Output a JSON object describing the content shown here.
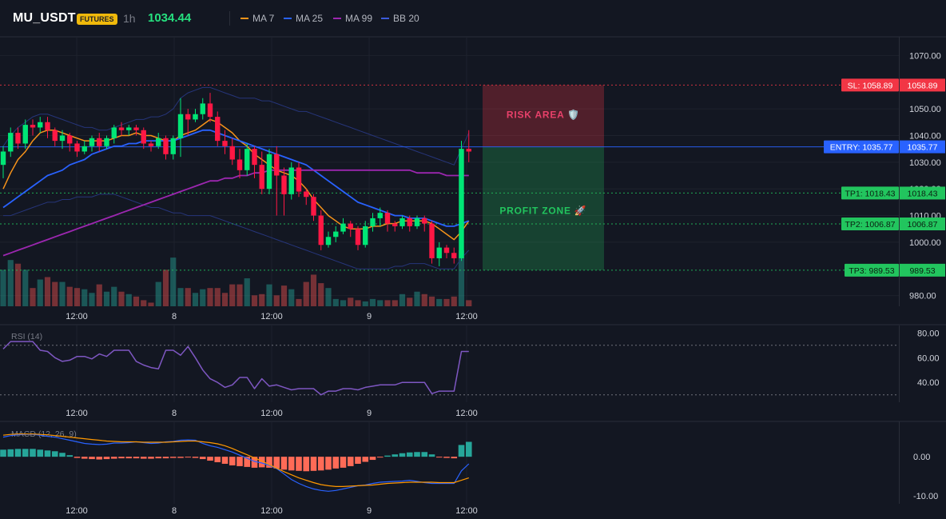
{
  "header": {
    "symbol": "MU_USDT",
    "badge": "FUTURES",
    "timeframe": "1h",
    "price": "1034.44",
    "legend": [
      {
        "label": "MA 7",
        "color": "#f7931a"
      },
      {
        "label": "MA 25",
        "color": "#2962ff"
      },
      {
        "label": "MA 99",
        "color": "#9c27b0"
      },
      {
        "label": "BB 20",
        "color": "#1e3a8a"
      }
    ]
  },
  "chart_data": [
    {
      "type": "candlestick",
      "title": "MU_USDT",
      "x_tick_labels": [
        "12:00",
        "8",
        "12:00",
        "9",
        "12:00"
      ],
      "y_tick_labels": [
        "1070.00",
        "1050.00",
        "1040.00",
        "1030.00",
        "1020.00",
        "1010.00",
        "1000.00",
        "980.00"
      ],
      "ylim": [
        976,
        1077
      ],
      "candles": [
        [
          1029,
          1034,
          1024,
          1036
        ],
        [
          1034,
          1041,
          1032,
          1043
        ],
        [
          1041,
          1037,
          1035,
          1043
        ],
        [
          1037,
          1044,
          1035,
          1046
        ],
        [
          1044,
          1043,
          1040,
          1046
        ],
        [
          1043,
          1045,
          1041,
          1047
        ],
        [
          1045,
          1042,
          1039,
          1047
        ],
        [
          1042,
          1038,
          1036,
          1043
        ],
        [
          1038,
          1040,
          1035,
          1042
        ],
        [
          1040,
          1037,
          1034,
          1041
        ],
        [
          1037,
          1034,
          1032,
          1038
        ],
        [
          1034,
          1036,
          1033,
          1038
        ],
        [
          1036,
          1039,
          1034,
          1040
        ],
        [
          1039,
          1036,
          1034,
          1041
        ],
        [
          1036,
          1039,
          1035,
          1040
        ],
        [
          1039,
          1043,
          1037,
          1044
        ],
        [
          1043,
          1042,
          1040,
          1045
        ],
        [
          1042,
          1043,
          1040,
          1044
        ],
        [
          1043,
          1042,
          1040,
          1044
        ],
        [
          1042,
          1037,
          1035,
          1043
        ],
        [
          1037,
          1036,
          1034,
          1038
        ],
        [
          1036,
          1039,
          1035,
          1041
        ],
        [
          1039,
          1033,
          1031,
          1040
        ],
        [
          1033,
          1039,
          1031,
          1040
        ],
        [
          1039,
          1048,
          1032,
          1054
        ],
        [
          1048,
          1046,
          1040,
          1050
        ],
        [
          1046,
          1048,
          1045,
          1050
        ],
        [
          1048,
          1052,
          1046,
          1054
        ],
        [
          1052,
          1047,
          1045,
          1056
        ],
        [
          1047,
          1038,
          1036,
          1049
        ],
        [
          1038,
          1036,
          1033,
          1042
        ],
        [
          1036,
          1031,
          1029,
          1039
        ],
        [
          1031,
          1027,
          1024,
          1035
        ],
        [
          1027,
          1035,
          1025,
          1037
        ],
        [
          1035,
          1029,
          1024,
          1036
        ],
        [
          1029,
          1020,
          1018,
          1034
        ],
        [
          1020,
          1033,
          1018,
          1035
        ],
        [
          1033,
          1025,
          1010,
          1036
        ],
        [
          1025,
          1018,
          1010,
          1028
        ],
        [
          1018,
          1028,
          1016,
          1030
        ],
        [
          1028,
          1019,
          1017,
          1030
        ],
        [
          1019,
          1017,
          1014,
          1020
        ],
        [
          1017,
          1010,
          1008,
          1018
        ],
        [
          1010,
          999,
          997,
          1012
        ],
        [
          999,
          1002,
          998,
          1004
        ],
        [
          1002,
          1004,
          1000,
          1006
        ],
        [
          1004,
          1007,
          1003,
          1009
        ],
        [
          1007,
          1005,
          1002,
          1008
        ],
        [
          1005,
          999,
          997,
          1006
        ],
        [
          999,
          1006,
          998,
          1008
        ],
        [
          1006,
          1009,
          1004,
          1011
        ],
        [
          1009,
          1011,
          1006,
          1013
        ],
        [
          1011,
          1007,
          1004,
          1012
        ],
        [
          1007,
          1006,
          1004,
          1008
        ],
        [
          1006,
          1009,
          1005,
          1010
        ],
        [
          1009,
          1006,
          1004,
          1010
        ],
        [
          1006,
          1009,
          1005,
          1010
        ],
        [
          1009,
          1007,
          1004,
          1010
        ],
        [
          1007,
          994,
          992,
          1008
        ],
        [
          994,
          998,
          991,
          1000
        ],
        [
          998,
          996,
          994,
          999
        ],
        [
          996,
          994,
          992,
          998
        ],
        [
          994,
          1035,
          993,
          1038
        ],
        [
          1035,
          1034,
          1030,
          1042
        ]
      ],
      "volume": [
        30,
        38,
        35,
        30,
        15,
        22,
        24,
        20,
        20,
        16,
        15,
        14,
        11,
        18,
        12,
        16,
        12,
        10,
        8,
        5,
        3,
        20,
        30,
        40,
        15,
        15,
        11,
        14,
        15,
        15,
        11,
        18,
        18,
        23,
        9,
        10,
        18,
        9,
        17,
        14,
        6,
        20,
        26,
        19,
        15,
        6,
        5,
        7,
        5,
        4,
        6,
        5,
        5,
        5,
        10,
        7,
        12,
        10,
        8,
        6,
        6,
        8,
        46,
        5
      ],
      "moving_averages": [
        {
          "name": "MA 7",
          "color": "#f7931a",
          "values": [
            1020,
            1026,
            1031,
            1034,
            1038,
            1041,
            1042,
            1042,
            1041,
            1040,
            1039,
            1038,
            1038,
            1038,
            1038,
            1039,
            1040,
            1040,
            1041,
            1040,
            1040,
            1039,
            1038,
            1038,
            1040,
            1041,
            1042,
            1044,
            1046,
            1045,
            1043,
            1041,
            1038,
            1036,
            1033,
            1031,
            1029,
            1027,
            1026,
            1025,
            1023,
            1020,
            1016,
            1013,
            1010,
            1008,
            1006,
            1005,
            1005,
            1005,
            1006,
            1006,
            1007,
            1007,
            1008,
            1008,
            1008,
            1008,
            1007,
            1005,
            1003,
            1001,
            1004,
            1008
          ]
        },
        {
          "name": "MA 25",
          "color": "#2962ff",
          "values": [
            1013,
            1015,
            1017,
            1019,
            1021,
            1023,
            1025,
            1026,
            1027,
            1029,
            1030,
            1031,
            1033,
            1034,
            1035,
            1036,
            1036,
            1037,
            1037,
            1038,
            1038,
            1038,
            1038,
            1038,
            1039,
            1040,
            1041,
            1042,
            1042,
            1041,
            1040,
            1039,
            1038,
            1037,
            1036,
            1035,
            1034,
            1033,
            1032,
            1031,
            1030,
            1029,
            1027,
            1025,
            1023,
            1021,
            1019,
            1017,
            1015,
            1014,
            1013,
            1012,
            1011,
            1010,
            1010,
            1009,
            1009,
            1009,
            1008,
            1007,
            1006,
            1006,
            1007,
            1008
          ]
        },
        {
          "name": "MA 99",
          "color": "#9c27b0",
          "values": [
            995,
            996,
            997,
            998,
            999,
            1000,
            1001,
            1002,
            1003,
            1004,
            1005,
            1006,
            1007,
            1008,
            1009,
            1010,
            1011,
            1012,
            1013,
            1014,
            1015,
            1016,
            1017,
            1018,
            1019,
            1020,
            1021,
            1022,
            1023,
            1023,
            1024,
            1024,
            1025,
            1025,
            1026,
            1026,
            1027,
            1027,
            1027,
            1027,
            1027,
            1027,
            1027,
            1027,
            1027,
            1027,
            1027,
            1027,
            1027,
            1027,
            1027,
            1027,
            1027,
            1027,
            1027,
            1027,
            1026,
            1026,
            1026,
            1026,
            1025,
            1025,
            1025,
            1025
          ]
        }
      ],
      "bollinger": {
        "name": "BB 20",
        "color": "#1e3a8a",
        "upper": [
          1036,
          1040,
          1043,
          1045,
          1047,
          1048,
          1048,
          1047,
          1046,
          1045,
          1044,
          1043,
          1043,
          1042,
          1042,
          1043,
          1044,
          1045,
          1046,
          1046,
          1047,
          1047,
          1048,
          1050,
          1054,
          1056,
          1057,
          1058,
          1058,
          1057,
          1056,
          1055,
          1054,
          1054,
          1054,
          1053,
          1053,
          1052,
          1051,
          1050,
          1049,
          1049,
          1048,
          1047,
          1046,
          1045,
          1044,
          1043,
          1042,
          1041,
          1040,
          1039,
          1038,
          1037,
          1036,
          1035,
          1034,
          1033,
          1032,
          1031,
          1030,
          1029,
          1035,
          1041
        ],
        "lower": [
          1010,
          1010,
          1011,
          1012,
          1013,
          1014,
          1015,
          1015,
          1016,
          1016,
          1017,
          1017,
          1017,
          1018,
          1018,
          1018,
          1017,
          1016,
          1015,
          1014,
          1013,
          1013,
          1012,
          1011,
          1011,
          1010,
          1010,
          1010,
          1010,
          1009,
          1008,
          1007,
          1006,
          1005,
          1004,
          1003,
          1002,
          1001,
          1000,
          999,
          998,
          997,
          996,
          995,
          994,
          993,
          992,
          991,
          990,
          990,
          990,
          990,
          990,
          991,
          991,
          992,
          992,
          992,
          991,
          990,
          990,
          990,
          994,
          997
        ]
      },
      "levels": [
        {
          "label": "SL: 1058.89",
          "price_label": "1058.89",
          "value": 1058.89,
          "color": "#f23645"
        },
        {
          "label": "ENTRY: 1035.77",
          "price_label": "1035.77",
          "value": 1035.77,
          "color": "#2962ff"
        },
        {
          "label": "TP1: 1018.43",
          "price_label": "1018.43",
          "value": 1018.43,
          "color": "#22c55e"
        },
        {
          "label": "TP2: 1006.87",
          "price_label": "1006.87",
          "value": 1006.87,
          "color": "#22c55e"
        },
        {
          "label": "TP3: 989.53",
          "price_label": "989.53",
          "value": 989.53,
          "color": "#22c55e"
        }
      ],
      "zones": [
        {
          "label": "RISK AREA 🛡️",
          "top": 1058.89,
          "bottom": 1035.77,
          "color": "#f23645"
        },
        {
          "label": "PROFIT ZONE 🚀",
          "top": 1035.77,
          "bottom": 989.53,
          "color": "#22c55e"
        }
      ]
    },
    {
      "type": "line",
      "title": "RSI (14)",
      "y_tick_labels": [
        "80.00",
        "60.00",
        "40.00"
      ],
      "ylim": [
        24,
        86
      ],
      "bands": [
        70,
        30
      ],
      "series": [
        {
          "name": "RSI (14)",
          "color": "#7e57c2",
          "values": [
            67,
            73,
            73,
            73,
            73,
            66,
            65,
            60,
            57,
            58,
            61,
            61,
            59,
            63,
            61,
            66,
            66,
            66,
            57,
            54,
            52,
            51,
            66,
            66,
            62,
            69,
            60,
            50,
            43,
            40,
            36,
            38,
            44,
            44,
            35,
            43,
            37,
            38,
            36,
            34,
            35,
            35,
            35,
            30,
            33,
            33,
            35,
            35,
            34,
            36,
            37,
            38,
            38,
            38,
            40,
            40,
            40,
            40,
            31,
            33,
            33,
            33,
            65,
            65
          ]
        }
      ]
    },
    {
      "type": "bar+line",
      "title": "MACD (12, 26, 9)",
      "y_tick_labels": [
        "0.00",
        "-10.00"
      ],
      "ylim": [
        -12,
        9
      ],
      "histogram": [
        1.8,
        1.9,
        2.0,
        2.0,
        2.0,
        1.8,
        1.6,
        1.4,
        1.0,
        0.4,
        -0.3,
        -0.5,
        -0.6,
        -0.7,
        -0.6,
        -0.5,
        -0.4,
        -0.4,
        -0.4,
        -0.5,
        -0.5,
        -0.4,
        -0.4,
        -0.3,
        -0.3,
        -0.2,
        -0.3,
        -0.6,
        -1.0,
        -1.4,
        -1.8,
        -2.2,
        -2.4,
        -2.6,
        -2.8,
        -2.7,
        -2.8,
        -3.0,
        -3.3,
        -3.5,
        -3.6,
        -3.7,
        -3.6,
        -3.5,
        -3.3,
        -3.0,
        -2.8,
        -2.4,
        -1.8,
        -1.3,
        -0.8,
        -0.2,
        0.3,
        0.6,
        0.9,
        1.1,
        1.2,
        1.2,
        0.6,
        -0.2,
        -0.3,
        -0.4,
        3.0,
        3.8
      ],
      "series": [
        {
          "name": "MACD",
          "color": "#2962ff",
          "values": [
            5.0,
            5.4,
            5.6,
            5.7,
            5.7,
            5.5,
            5.2,
            5.0,
            4.6,
            4.2,
            3.8,
            3.4,
            3.2,
            3.1,
            3.2,
            3.5,
            3.5,
            3.6,
            3.8,
            3.6,
            3.4,
            3.5,
            3.8,
            3.9,
            4.2,
            4.3,
            4.2,
            3.4,
            2.8,
            2.4,
            1.8,
            1.2,
            0.4,
            -0.4,
            -1.2,
            -1.6,
            -2.2,
            -3.0,
            -4.4,
            -5.8,
            -6.8,
            -7.6,
            -8.2,
            -8.6,
            -8.8,
            -8.6,
            -8.2,
            -7.8,
            -7.4,
            -7.2,
            -6.8,
            -6.5,
            -6.4,
            -6.3,
            -6.2,
            -6.0,
            -6.3,
            -6.6,
            -6.8,
            -6.8,
            -6.8,
            -6.8,
            -3.6,
            -1.8
          ]
        },
        {
          "name": "Signal",
          "color": "#ff9800",
          "values": [
            5.5,
            5.7,
            5.8,
            5.8,
            5.8,
            5.7,
            5.6,
            5.4,
            5.2,
            5.0,
            4.8,
            4.6,
            4.4,
            4.2,
            4.0,
            3.9,
            3.8,
            3.8,
            3.8,
            3.7,
            3.7,
            3.7,
            3.7,
            3.8,
            3.9,
            4.0,
            4.0,
            3.8,
            3.6,
            3.3,
            2.8,
            2.1,
            1.3,
            0.5,
            -0.3,
            -1.1,
            -2.0,
            -2.9,
            -3.8,
            -4.6,
            -5.4,
            -6.0,
            -6.6,
            -7.1,
            -7.4,
            -7.6,
            -7.6,
            -7.5,
            -7.4,
            -7.3,
            -7.2,
            -7.0,
            -6.8,
            -6.7,
            -6.6,
            -6.5,
            -6.5,
            -6.5,
            -6.5,
            -6.6,
            -6.6,
            -6.6,
            -6.0,
            -5.4
          ]
        }
      ]
    }
  ]
}
